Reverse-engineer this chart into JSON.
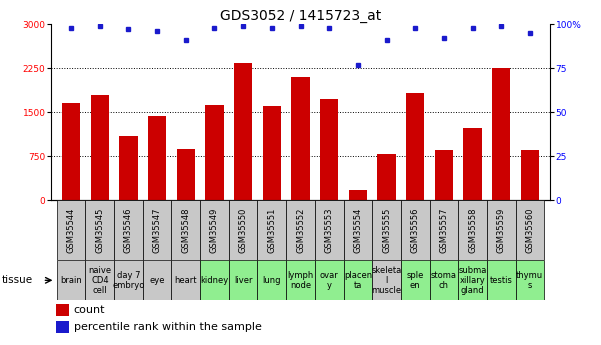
{
  "title": "GDS3052 / 1415723_at",
  "samples": [
    "GSM35544",
    "GSM35545",
    "GSM35546",
    "GSM35547",
    "GSM35548",
    "GSM35549",
    "GSM35550",
    "GSM35551",
    "GSM35552",
    "GSM35553",
    "GSM35554",
    "GSM35555",
    "GSM35556",
    "GSM35557",
    "GSM35558",
    "GSM35559",
    "GSM35560"
  ],
  "tissues": [
    "brain",
    "naive\nCD4\ncell",
    "day 7\nembryо",
    "eye",
    "heart",
    "kidney",
    "liver",
    "lung",
    "lymph\nnode",
    "ovar\ny",
    "placen\nta",
    "skeleta\nl\nmuscle",
    "sple\nen",
    "stoma\nch",
    "subma\nxillary\ngland",
    "testis",
    "thymu\ns"
  ],
  "tissue_colors": [
    "#c8c8c8",
    "#c8c8c8",
    "#c8c8c8",
    "#c8c8c8",
    "#c8c8c8",
    "#90ee90",
    "#90ee90",
    "#90ee90",
    "#90ee90",
    "#90ee90",
    "#90ee90",
    "#c8c8c8",
    "#90ee90",
    "#90ee90",
    "#90ee90",
    "#90ee90",
    "#90ee90"
  ],
  "counts": [
    1650,
    1800,
    1100,
    1430,
    870,
    1620,
    2330,
    1600,
    2100,
    1720,
    175,
    780,
    1830,
    850,
    1230,
    2250,
    850
  ],
  "percentiles": [
    98,
    99,
    97,
    96,
    91,
    98,
    99,
    98,
    99,
    98,
    77,
    91,
    98,
    92,
    98,
    99,
    95
  ],
  "bar_color": "#cc0000",
  "dot_color": "#1a1acc",
  "ylim_left": [
    0,
    3000
  ],
  "ylim_right": [
    0,
    100
  ],
  "yticks_left": [
    0,
    750,
    1500,
    2250,
    3000
  ],
  "yticks_right": [
    0,
    25,
    50,
    75,
    100
  ],
  "bg_color": "#ffffff",
  "bar_width": 0.65,
  "title_fontsize": 10,
  "tick_fontsize": 6.5,
  "gsm_fontsize": 6,
  "tissue_fontsize": 6,
  "legend_count_label": "count",
  "legend_pct_label": "percentile rank within the sample"
}
